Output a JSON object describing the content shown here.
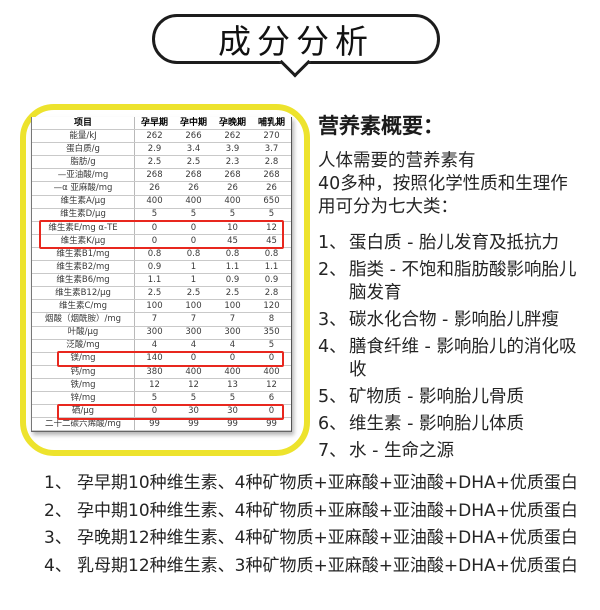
{
  "title": "成分分析",
  "colors": {
    "frame_border": "#ede32d",
    "highlight_border": "#e8271e"
  },
  "table": {
    "headers": [
      "项目",
      "孕早期",
      "孕中期",
      "孕晚期",
      "哺乳期"
    ],
    "rows": [
      {
        "label": "能量/kJ",
        "values": [
          "262",
          "266",
          "262",
          "270"
        ],
        "highlighted": false
      },
      {
        "label": "蛋白质/g",
        "values": [
          "2.9",
          "3.4",
          "3.9",
          "3.7"
        ],
        "highlighted": false
      },
      {
        "label": "脂肪/g",
        "values": [
          "2.5",
          "2.5",
          "2.3",
          "2.8"
        ],
        "highlighted": false
      },
      {
        "label": "—亚油酸/mg",
        "values": [
          "268",
          "268",
          "268",
          "268"
        ],
        "highlighted": false
      },
      {
        "label": "—α 亚麻酸/mg",
        "values": [
          "26",
          "26",
          "26",
          "26"
        ],
        "highlighted": false
      },
      {
        "label": "维生素A/μg",
        "values": [
          "400",
          "400",
          "400",
          "650"
        ],
        "highlighted": false
      },
      {
        "label": "维生素D/μg",
        "values": [
          "5",
          "5",
          "5",
          "5"
        ],
        "highlighted": false
      },
      {
        "label": "维生素E/mg α-TE",
        "values": [
          "0",
          "0",
          "10",
          "12"
        ],
        "highlighted": true
      },
      {
        "label": "维生素K/μg",
        "values": [
          "0",
          "0",
          "45",
          "45"
        ],
        "highlighted": true
      },
      {
        "label": "维生素B1/mg",
        "values": [
          "0.8",
          "0.8",
          "0.8",
          "0.8"
        ],
        "highlighted": false
      },
      {
        "label": "维生素B2/mg",
        "values": [
          "0.9",
          "1",
          "1.1",
          "1.1"
        ],
        "highlighted": false
      },
      {
        "label": "维生素B6/mg",
        "values": [
          "1.1",
          "1",
          "0.9",
          "0.9"
        ],
        "highlighted": false
      },
      {
        "label": "维生素B12/μg",
        "values": [
          "2.5",
          "2.5",
          "2.5",
          "2.8"
        ],
        "highlighted": false
      },
      {
        "label": "维生素C/mg",
        "values": [
          "100",
          "100",
          "100",
          "120"
        ],
        "highlighted": false
      },
      {
        "label": "烟酸（烟酰胺）/mg",
        "values": [
          "7",
          "7",
          "7",
          "8"
        ],
        "highlighted": false
      },
      {
        "label": "叶酸/μg",
        "values": [
          "300",
          "300",
          "300",
          "350"
        ],
        "highlighted": false
      },
      {
        "label": "泛酸/mg",
        "values": [
          "4",
          "4",
          "4",
          "5"
        ],
        "highlighted": false
      },
      {
        "label": "镁/mg",
        "values": [
          "140",
          "0",
          "0",
          "0"
        ],
        "highlighted": true
      },
      {
        "label": "钙/mg",
        "values": [
          "380",
          "400",
          "400",
          "400"
        ],
        "highlighted": false
      },
      {
        "label": "铁/mg",
        "values": [
          "12",
          "12",
          "13",
          "12"
        ],
        "highlighted": false
      },
      {
        "label": "锌/mg",
        "values": [
          "5",
          "5",
          "5",
          "6"
        ],
        "highlighted": false
      },
      {
        "label": "硒/μg",
        "values": [
          "0",
          "30",
          "30",
          "0"
        ],
        "highlighted": true
      },
      {
        "label": "二十二碳六烯酸/mg",
        "values": [
          "99",
          "99",
          "99",
          "99"
        ],
        "highlighted": false
      }
    ]
  },
  "overview": {
    "heading": "营养素概要：",
    "intro_lines": [
      "人体需要的营养素有",
      "40多种，按照化学性质和生理作",
      "用可分为七大类："
    ],
    "items": [
      {
        "num": "1、",
        "text": "蛋白质 - 胎儿发育及抵抗力"
      },
      {
        "num": "2、",
        "text": "脂类 - 不饱和脂肪酸影响胎儿脑发育"
      },
      {
        "num": "3、",
        "text": "碳水化合物 - 影响胎儿胖瘦"
      },
      {
        "num": "4、",
        "text": "膳食纤维 - 影响胎儿的消化吸收"
      },
      {
        "num": "5、",
        "text": "矿物质 - 影响胎儿骨质"
      },
      {
        "num": "6、",
        "text": "维生素 - 影响胎儿体质"
      },
      {
        "num": "7、",
        "text": "水 -  生命之源"
      }
    ]
  },
  "footnotes": [
    {
      "num": "1、",
      "text": "孕早期10种维生素、4种矿物质+亚麻酸+亚油酸+DHA+优质蛋白"
    },
    {
      "num": "2、",
      "text": "孕中期10种维生素、4种矿物质+亚麻酸+亚油酸+DHA+优质蛋白"
    },
    {
      "num": "3、",
      "text": "孕晚期12种维生素、4种矿物质+亚麻酸+亚油酸+DHA+优质蛋白"
    },
    {
      "num": "4、",
      "text": "乳母期12种维生素、3种矿物质+亚麻酸+亚油酸+DHA+优质蛋白"
    }
  ]
}
